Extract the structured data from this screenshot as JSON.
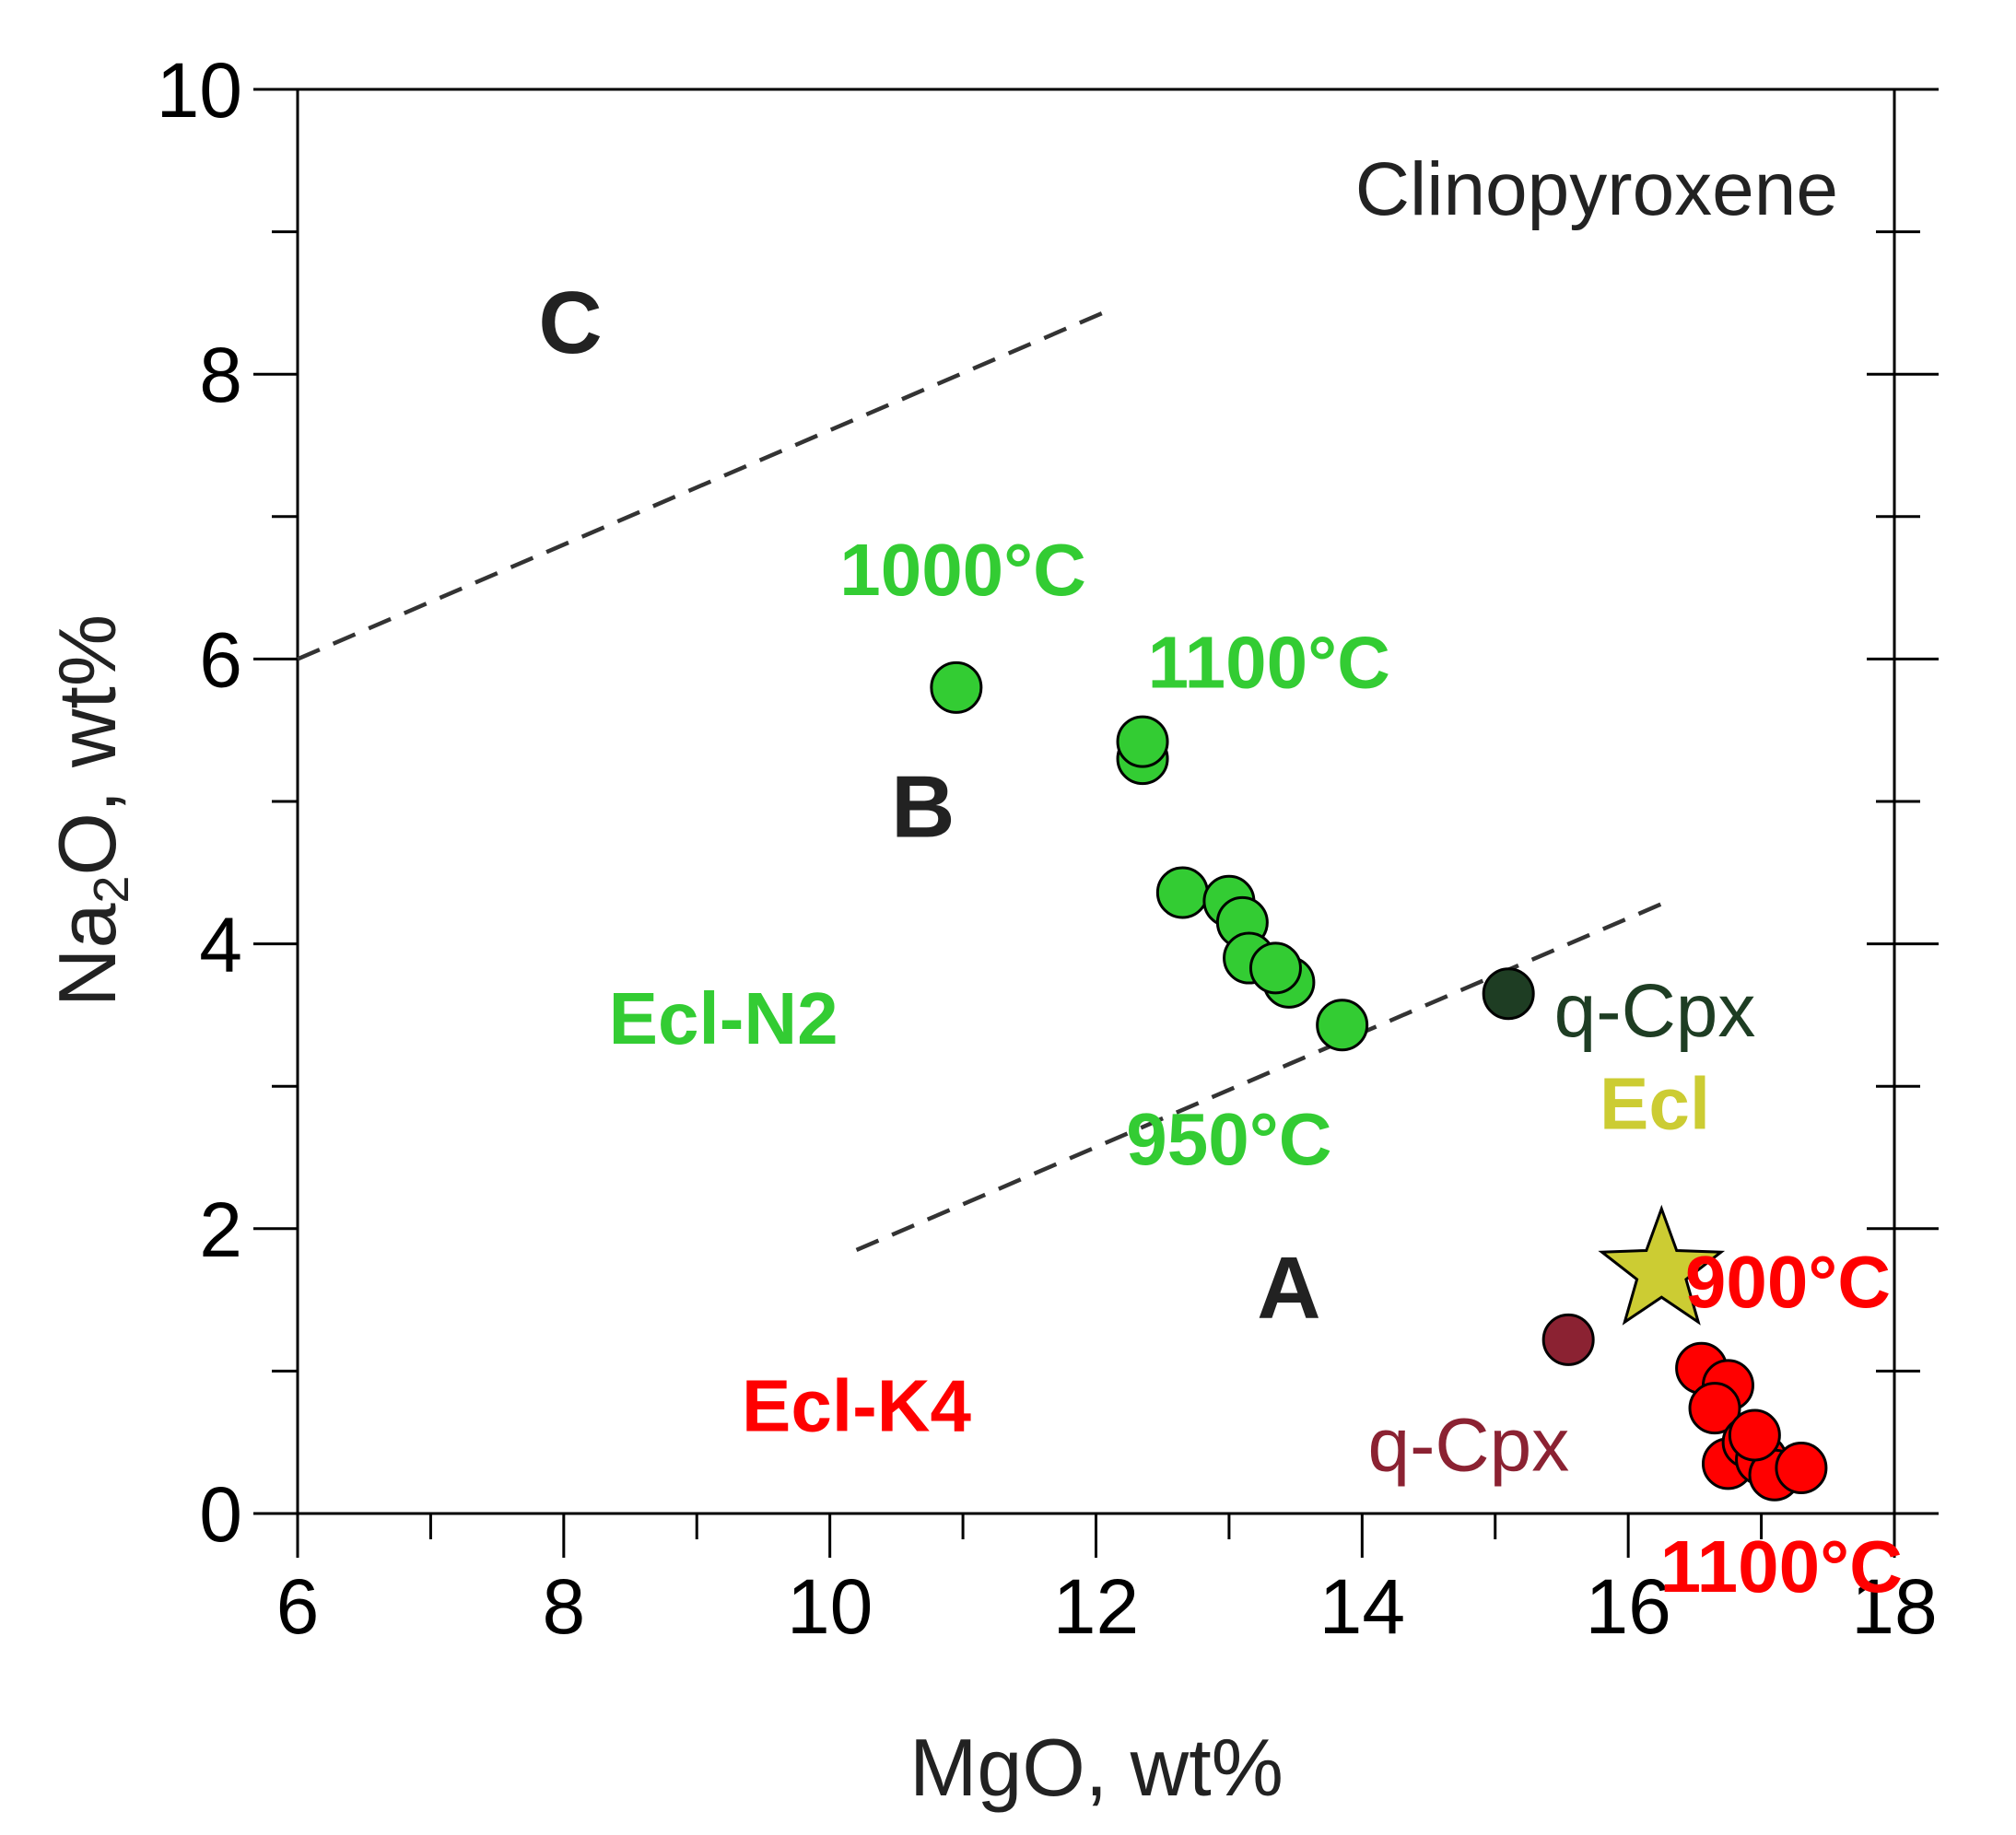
{
  "chart_data": {
    "type": "scatter",
    "title": "Clinopyroxene",
    "xlabel": "MgO, wt%",
    "ylabel_main": "Na",
    "ylabel_sub": "2",
    "ylabel_rest": "O, wt%",
    "xlim": [
      6,
      18
    ],
    "ylim": [
      0,
      10
    ],
    "xticks": [
      6,
      8,
      10,
      12,
      14,
      16,
      18
    ],
    "yticks": [
      0,
      2,
      4,
      6,
      8,
      10
    ],
    "xticks_minor": [
      7,
      9,
      11,
      13,
      15,
      17
    ],
    "yticks_minor": [
      1,
      3,
      5,
      7,
      9
    ],
    "boundaries": [
      {
        "name": "B-C boundary",
        "x": [
          6.0,
          12.1
        ],
        "y": [
          6.0,
          8.45
        ]
      },
      {
        "name": "A-B boundary",
        "x": [
          10.2,
          16.3
        ],
        "y": [
          1.85,
          4.3
        ]
      }
    ],
    "series": [
      {
        "name": "Ecl-N2",
        "color": "#33cc33",
        "x": [
          10.95,
          12.35,
          12.35,
          12.65,
          13.0,
          13.1,
          13.15,
          13.45,
          13.35,
          13.85
        ],
        "y": [
          5.8,
          5.3,
          5.42,
          4.36,
          4.3,
          4.15,
          3.9,
          3.73,
          3.83,
          3.43
        ]
      },
      {
        "name": "Ecl-K4",
        "color": "#ff0000",
        "x": [
          16.55,
          16.75,
          16.65,
          16.75,
          16.9,
          17.0,
          17.1,
          17.3,
          16.95
        ],
        "y": [
          1.02,
          0.9,
          0.74,
          0.35,
          0.5,
          0.38,
          0.27,
          0.32,
          0.55
        ]
      },
      {
        "name": "q-Cpx (Ecl-N2)",
        "color": "#1e3d23",
        "x": [
          15.1
        ],
        "y": [
          3.65
        ]
      },
      {
        "name": "q-Cpx (Ecl-K4)",
        "color": "#8b2232",
        "x": [
          15.55
        ],
        "y": [
          1.22
        ]
      },
      {
        "name": "Ecl",
        "color": "#cccc33",
        "marker": "star",
        "x": [
          16.25
        ],
        "y": [
          1.7
        ]
      }
    ],
    "regions": [
      {
        "label": "C",
        "x": 8.05,
        "y": 8.15
      },
      {
        "label": "B",
        "x": 10.7,
        "y": 4.75
      },
      {
        "label": "A",
        "x": 13.45,
        "y": 1.37
      }
    ],
    "annotations": [
      {
        "text": "1000°C",
        "color": "#33cc33",
        "x": 11.0,
        "y": 6.45,
        "style": "bold"
      },
      {
        "text": "1100°C",
        "color": "#33cc33",
        "x": 13.3,
        "y": 5.8,
        "style": "bold"
      },
      {
        "text": "Ecl-N2",
        "color": "#33cc33",
        "x": 9.2,
        "y": 3.3,
        "style": "bold"
      },
      {
        "text": "950°C",
        "color": "#33cc33",
        "x": 13.0,
        "y": 2.45,
        "style": "bold"
      },
      {
        "text": "q-Cpx",
        "color": "#1e3d23",
        "x": 16.2,
        "y": 3.35,
        "style": "normal"
      },
      {
        "text": "Ecl",
        "color": "#cccc33",
        "x": 16.2,
        "y": 2.7,
        "style": "bold"
      },
      {
        "text": "900°C",
        "color": "#ff0000",
        "x": 17.2,
        "y": 1.45,
        "style": "bold"
      },
      {
        "text": "Ecl-K4",
        "color": "#ff0000",
        "x": 10.2,
        "y": 0.58,
        "style": "bold"
      },
      {
        "text": "q-Cpx",
        "color": "#8b2232",
        "x": 14.8,
        "y": 0.3,
        "style": "normal"
      },
      {
        "text": "1100°C",
        "color": "#ff0000",
        "x": 17.15,
        "y": -0.55,
        "style": "bold"
      }
    ]
  }
}
